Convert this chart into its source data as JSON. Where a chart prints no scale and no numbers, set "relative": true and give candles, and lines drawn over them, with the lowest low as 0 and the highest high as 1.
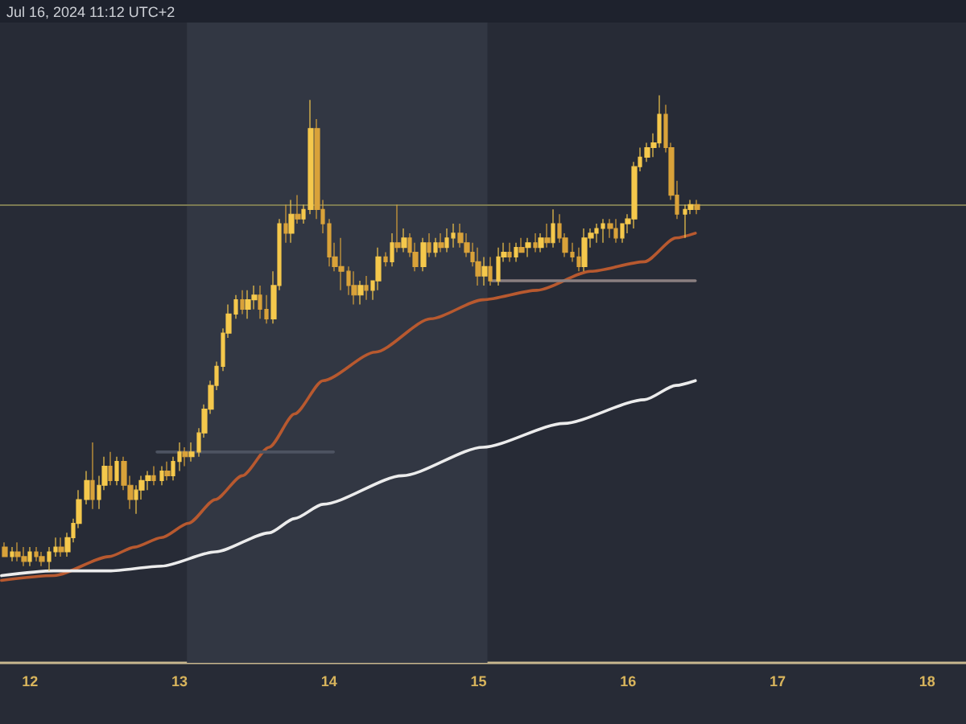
{
  "chart_data": {
    "type": "candlestick",
    "relative": true,
    "marker": "none",
    "annotations": [
      "Jul 16, 2024 11:12 UTC+2"
    ],
    "x": [
      11.83,
      11.88,
      11.92,
      11.96,
      12.0,
      12.04,
      12.08,
      12.13,
      12.17,
      12.21,
      12.25,
      12.29,
      12.33,
      12.38,
      12.42,
      12.46,
      12.5,
      12.54,
      12.58,
      12.63,
      12.67,
      12.71,
      12.75,
      12.79,
      12.83,
      12.88,
      12.92,
      12.96,
      13.0,
      13.04,
      13.08,
      13.13,
      13.17,
      13.21,
      13.25,
      13.29,
      13.33,
      13.38,
      13.42,
      13.46,
      13.5,
      13.54,
      13.58,
      13.63,
      13.67,
      13.71,
      13.75,
      13.79,
      13.83,
      13.88,
      13.92,
      13.96,
      14.0,
      14.04,
      14.08,
      14.13,
      14.17,
      14.21,
      14.25,
      14.29,
      14.33,
      14.38,
      14.42,
      14.46,
      14.5,
      14.54,
      14.58,
      14.63,
      14.67,
      14.71,
      14.75,
      14.79,
      14.83,
      14.88,
      14.92,
      14.96,
      15.0,
      15.04,
      15.08,
      15.13,
      15.17,
      15.21,
      15.25,
      15.29,
      15.33,
      15.38,
      15.42,
      15.46,
      15.5,
      15.54,
      15.58,
      15.63,
      15.67,
      15.71,
      15.75,
      15.79,
      15.83,
      15.88,
      15.92,
      15.96,
      16.0,
      16.04,
      16.08,
      16.13,
      16.17,
      16.21,
      16.25,
      16.29,
      16.33,
      16.38,
      16.42,
      16.46
    ],
    "ohlc": [
      [
        0.05,
        0.06,
        0.03,
        0.03
      ],
      [
        0.03,
        0.05,
        0.02,
        0.04
      ],
      [
        0.04,
        0.06,
        0.02,
        0.03
      ],
      [
        0.03,
        0.05,
        0.01,
        0.02
      ],
      [
        0.02,
        0.05,
        0.01,
        0.04
      ],
      [
        0.04,
        0.05,
        0.02,
        0.03
      ],
      [
        0.03,
        0.04,
        0.01,
        0.02
      ],
      [
        0.02,
        0.05,
        0,
        0.04
      ],
      [
        0.04,
        0.07,
        0.03,
        0.05
      ],
      [
        0.05,
        0.07,
        0.03,
        0.04
      ],
      [
        0.04,
        0.08,
        0.03,
        0.07
      ],
      [
        0.07,
        0.11,
        0.06,
        0.1
      ],
      [
        0.1,
        0.17,
        0.09,
        0.15
      ],
      [
        0.15,
        0.21,
        0.14,
        0.19
      ],
      [
        0.19,
        0.27,
        0.13,
        0.15
      ],
      [
        0.15,
        0.2,
        0.13,
        0.18
      ],
      [
        0.18,
        0.24,
        0.17,
        0.22
      ],
      [
        0.22,
        0.25,
        0.18,
        0.19
      ],
      [
        0.19,
        0.24,
        0.18,
        0.23
      ],
      [
        0.23,
        0.24,
        0.17,
        0.18
      ],
      [
        0.18,
        0.2,
        0.13,
        0.15
      ],
      [
        0.15,
        0.18,
        0.12,
        0.17
      ],
      [
        0.17,
        0.2,
        0.15,
        0.19
      ],
      [
        0.19,
        0.21,
        0.17,
        0.2
      ],
      [
        0.2,
        0.22,
        0.18,
        0.19
      ],
      [
        0.19,
        0.22,
        0.18,
        0.21
      ],
      [
        0.21,
        0.23,
        0.19,
        0.2
      ],
      [
        0.2,
        0.24,
        0.19,
        0.23
      ],
      [
        0.23,
        0.27,
        0.21,
        0.25
      ],
      [
        0.25,
        0.26,
        0.22,
        0.24
      ],
      [
        0.24,
        0.27,
        0.23,
        0.25
      ],
      [
        0.25,
        0.3,
        0.24,
        0.29
      ],
      [
        0.29,
        0.35,
        0.28,
        0.34
      ],
      [
        0.34,
        0.4,
        0.33,
        0.39
      ],
      [
        0.39,
        0.44,
        0.38,
        0.43
      ],
      [
        0.43,
        0.51,
        0.42,
        0.5
      ],
      [
        0.5,
        0.56,
        0.49,
        0.54
      ],
      [
        0.54,
        0.58,
        0.53,
        0.57
      ],
      [
        0.57,
        0.59,
        0.54,
        0.55
      ],
      [
        0.55,
        0.59,
        0.53,
        0.57
      ],
      [
        0.57,
        0.6,
        0.55,
        0.58
      ],
      [
        0.58,
        0.6,
        0.53,
        0.55
      ],
      [
        0.55,
        0.58,
        0.52,
        0.53
      ],
      [
        0.53,
        0.63,
        0.52,
        0.6
      ],
      [
        0.6,
        0.74,
        0.59,
        0.73
      ],
      [
        0.73,
        0.77,
        0.69,
        0.71
      ],
      [
        0.71,
        0.78,
        0.69,
        0.75
      ],
      [
        0.75,
        0.79,
        0.73,
        0.74
      ],
      [
        0.74,
        0.77,
        0.73,
        0.76
      ],
      [
        0.76,
        0.99,
        0.75,
        0.93
      ],
      [
        0.93,
        0.95,
        0.74,
        0.76
      ],
      [
        0.76,
        0.78,
        0.71,
        0.73
      ],
      [
        0.73,
        0.74,
        0.64,
        0.66
      ],
      [
        0.66,
        0.69,
        0.63,
        0.64
      ],
      [
        0.64,
        0.7,
        0.59,
        0.63
      ],
      [
        0.63,
        0.64,
        0.58,
        0.6
      ],
      [
        0.6,
        0.63,
        0.56,
        0.58
      ],
      [
        0.58,
        0.61,
        0.56,
        0.6
      ],
      [
        0.6,
        0.62,
        0.57,
        0.59
      ],
      [
        0.59,
        0.61,
        0.57,
        0.61
      ],
      [
        0.61,
        0.68,
        0.59,
        0.66
      ],
      [
        0.66,
        0.67,
        0.64,
        0.65
      ],
      [
        0.65,
        0.71,
        0.64,
        0.69
      ],
      [
        0.69,
        0.77,
        0.67,
        0.68
      ],
      [
        0.68,
        0.72,
        0.67,
        0.7
      ],
      [
        0.7,
        0.71,
        0.66,
        0.67
      ],
      [
        0.67,
        0.69,
        0.63,
        0.64
      ],
      [
        0.64,
        0.7,
        0.63,
        0.69
      ],
      [
        0.69,
        0.71,
        0.66,
        0.67
      ],
      [
        0.67,
        0.7,
        0.66,
        0.69
      ],
      [
        0.69,
        0.71,
        0.67,
        0.68
      ],
      [
        0.68,
        0.72,
        0.67,
        0.7
      ],
      [
        0.7,
        0.73,
        0.68,
        0.71
      ],
      [
        0.71,
        0.73,
        0.68,
        0.69
      ],
      [
        0.69,
        0.71,
        0.66,
        0.67
      ],
      [
        0.67,
        0.69,
        0.64,
        0.65
      ],
      [
        0.65,
        0.68,
        0.6,
        0.62
      ],
      [
        0.62,
        0.66,
        0.6,
        0.64
      ],
      [
        0.64,
        0.66,
        0.6,
        0.61
      ],
      [
        0.61,
        0.68,
        0.6,
        0.66
      ],
      [
        0.66,
        0.69,
        0.65,
        0.67
      ],
      [
        0.67,
        0.69,
        0.65,
        0.66
      ],
      [
        0.66,
        0.69,
        0.65,
        0.68
      ],
      [
        0.68,
        0.7,
        0.67,
        0.67
      ],
      [
        0.68,
        0.7,
        0.66,
        0.69
      ],
      [
        0.69,
        0.71,
        0.67,
        0.68
      ],
      [
        0.68,
        0.71,
        0.67,
        0.7
      ],
      [
        0.7,
        0.73,
        0.68,
        0.69
      ],
      [
        0.69,
        0.76,
        0.68,
        0.73
      ],
      [
        0.73,
        0.75,
        0.69,
        0.7
      ],
      [
        0.7,
        0.71,
        0.66,
        0.67
      ],
      [
        0.67,
        0.69,
        0.65,
        0.66
      ],
      [
        0.66,
        0.68,
        0.63,
        0.64
      ],
      [
        0.64,
        0.72,
        0.63,
        0.7
      ],
      [
        0.7,
        0.72,
        0.68,
        0.71
      ],
      [
        0.71,
        0.73,
        0.69,
        0.72
      ],
      [
        0.72,
        0.74,
        0.69,
        0.73
      ],
      [
        0.73,
        0.74,
        0.7,
        0.72
      ],
      [
        0.72,
        0.74,
        0.69,
        0.7
      ],
      [
        0.7,
        0.73,
        0.69,
        0.73
      ],
      [
        0.73,
        0.75,
        0.71,
        0.74
      ],
      [
        0.74,
        0.86,
        0.72,
        0.85
      ],
      [
        0.85,
        0.89,
        0.84,
        0.87
      ],
      [
        0.87,
        0.9,
        0.86,
        0.89
      ],
      [
        0.89,
        0.92,
        0.87,
        0.9
      ],
      [
        0.9,
        1,
        0.89,
        0.96
      ],
      [
        0.96,
        0.98,
        0.88,
        0.89
      ],
      [
        0.89,
        0.9,
        0.78,
        0.79
      ],
      [
        0.79,
        0.82,
        0.74,
        0.75
      ],
      [
        0.75,
        0.77,
        0.7,
        0.76
      ],
      [
        0.76,
        0.78,
        0.75,
        0.77
      ],
      [
        0.77,
        0.78,
        0.75,
        0.76
      ]
    ],
    "colors": [
      "#d9a23a",
      "#f5c84c",
      "#d9a23a",
      "#d9a23a",
      "#f5c84c",
      "#d9a23a",
      "#d9a23a",
      "#f5c84c",
      "#f5c84c",
      "#d9a23a",
      "#f5c84c",
      "#f5c84c",
      "#f5c84c",
      "#f5c84c",
      "#d9a23a",
      "#f5c84c",
      "#f5c84c",
      "#d9a23a",
      "#f5c84c",
      "#d9a23a",
      "#d9a23a",
      "#f5c84c",
      "#f5c84c",
      "#f5c84c",
      "#d9a23a",
      "#f5c84c",
      "#d9a23a",
      "#f5c84c",
      "#f5c84c",
      "#d9a23a",
      "#f5c84c",
      "#f5c84c",
      "#f5c84c",
      "#f5c84c",
      "#f5c84c",
      "#f5c84c",
      "#f5c84c",
      "#f5c84c",
      "#d9a23a",
      "#f5c84c",
      "#f5c84c",
      "#d9a23a",
      "#d9a23a",
      "#f5c84c",
      "#f5c84c",
      "#d9a23a",
      "#f5c84c",
      "#d9a23a",
      "#f5c84c",
      "#f5c84c",
      "#d9a23a",
      "#d9a23a",
      "#d9a23a",
      "#d9a23a",
      "#d9a23a",
      "#d9a23a",
      "#d9a23a",
      "#f5c84c",
      "#d9a23a",
      "#f5c84c",
      "#f5c84c",
      "#d9a23a",
      "#f5c84c",
      "#d9a23a",
      "#f5c84c",
      "#d9a23a",
      "#d9a23a",
      "#f5c84c",
      "#d9a23a",
      "#f5c84c",
      "#d9a23a",
      "#f5c84c",
      "#f5c84c",
      "#d9a23a",
      "#d9a23a",
      "#d9a23a",
      "#d9a23a",
      "#f5c84c",
      "#d9a23a",
      "#f5c84c",
      "#f5c84c",
      "#d9a23a",
      "#f5c84c",
      "#d9a23a",
      "#f5c84c",
      "#d9a23a",
      "#f5c84c",
      "#d9a23a",
      "#f5c84c",
      "#d9a23a",
      "#d9a23a",
      "#d9a23a",
      "#d9a23a",
      "#f5c84c",
      "#f5c84c",
      "#f5c84c",
      "#f5c84c",
      "#d9a23a",
      "#d9a23a",
      "#f5c84c",
      "#f5c84c",
      "#f5c84c",
      "#f5c84c",
      "#f5c84c",
      "#f5c84c",
      "#f5c84c",
      "#d9a23a",
      "#d9a23a",
      "#d9a23a",
      "#f5c84c",
      "#f5c84c",
      "#d9a23a"
    ],
    "series": [
      {
        "type": "line",
        "color": "#b8592f",
        "x": [
          11.81,
          12.16,
          12.53,
          12.7,
          12.88,
          13.06,
          13.24,
          13.42,
          13.6,
          13.77,
          13.96,
          14.31,
          14.68,
          15.03,
          15.39,
          15.75,
          16.11,
          16.32,
          16.45
        ],
        "values": [
          -0.02,
          -0.01,
          0.03,
          0.05,
          0.07,
          0.1,
          0.15,
          0.2,
          0.26,
          0.33,
          0.4,
          0.46,
          0.53,
          0.57,
          0.59,
          0.63,
          0.65,
          0.7,
          0.71
        ]
      },
      {
        "type": "line",
        "color": "#ececec",
        "x": [
          11.81,
          12.16,
          12.53,
          12.88,
          13.24,
          13.6,
          13.77,
          13.96,
          14.49,
          15.03,
          15.57,
          16.11,
          16.32,
          16.45
        ],
        "values": [
          -0.01,
          0,
          0,
          0.01,
          0.04,
          0.08,
          0.11,
          0.14,
          0.2,
          0.26,
          0.31,
          0.36,
          0.39,
          0.4
        ]
      },
      {
        "type": "line",
        "color": "#8a7f80",
        "x": [
          15.09,
          16.45
        ],
        "values": [
          0.61,
          0.61
        ]
      },
      {
        "type": "line",
        "color": "#4d5361",
        "x": [
          12.85,
          14.03
        ],
        "values": [
          0.25,
          0.25
        ]
      }
    ],
    "xlim": [
      11.8,
      18.26
    ],
    "xticks": [
      12,
      13,
      14,
      15,
      16,
      17,
      18
    ],
    "ref_lines": [
      {
        "axis": "y",
        "value": 0.77,
        "color": "#7b7a52"
      }
    ],
    "bands": [
      {
        "axis": "x",
        "from": 13.05,
        "to": 15.06,
        "color": "#323743"
      }
    ]
  }
}
